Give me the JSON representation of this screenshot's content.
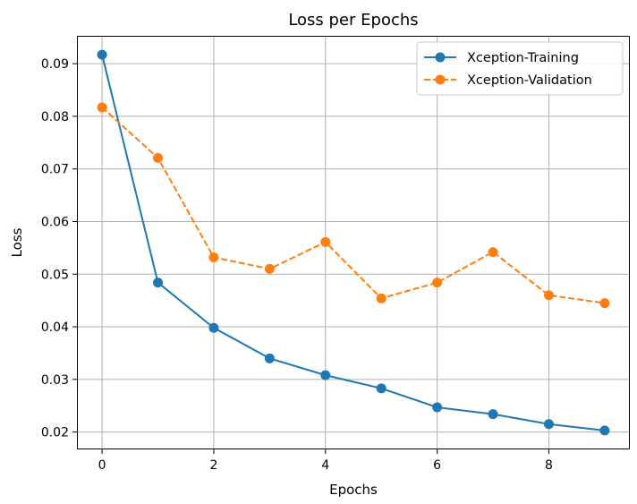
{
  "chart_data": {
    "type": "line",
    "title": "Loss per Epochs",
    "xlabel": "Epochs",
    "ylabel": "Loss",
    "x": [
      0,
      1,
      2,
      3,
      4,
      5,
      6,
      7,
      8,
      9
    ],
    "xlim": [
      -0.45,
      9.45
    ],
    "ylim": [
      0.0167,
      0.0953
    ],
    "xticks": [
      0,
      2,
      4,
      6,
      8
    ],
    "xtick_labels": [
      "0",
      "2",
      "4",
      "6",
      "8"
    ],
    "yticks": [
      0.02,
      0.03,
      0.04,
      0.05,
      0.06,
      0.07,
      0.08,
      0.09
    ],
    "ytick_labels": [
      "0.02",
      "0.03",
      "0.04",
      "0.05",
      "0.06",
      "0.07",
      "0.08",
      "0.09"
    ],
    "grid": true,
    "legend_position": "top-right",
    "series": [
      {
        "name": "Xception-Training",
        "values": [
          0.0917,
          0.0484,
          0.0398,
          0.034,
          0.0308,
          0.0283,
          0.0247,
          0.0234,
          0.0215,
          0.0203
        ],
        "color": "#1f77b4",
        "line_style": "solid",
        "marker": "circle"
      },
      {
        "name": "Xception-Validation",
        "values": [
          0.0817,
          0.0721,
          0.0532,
          0.051,
          0.0561,
          0.0454,
          0.0484,
          0.0542,
          0.046,
          0.0445
        ],
        "color": "#ff7f0e",
        "line_style": "dashed",
        "marker": "circle"
      }
    ]
  }
}
